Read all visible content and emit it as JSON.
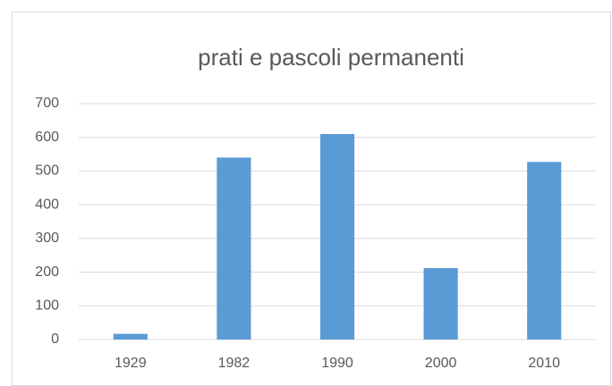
{
  "chart_data": {
    "type": "bar",
    "title": "prati e pascoli permanenti",
    "categories": [
      "1929",
      "1982",
      "1990",
      "2000",
      "2010"
    ],
    "values": [
      17,
      540,
      610,
      212,
      527
    ],
    "color": "#5b9bd5",
    "ylim": [
      0,
      700
    ],
    "yticks": [
      0,
      100,
      200,
      300,
      400,
      500,
      600,
      700
    ],
    "grid": true
  }
}
